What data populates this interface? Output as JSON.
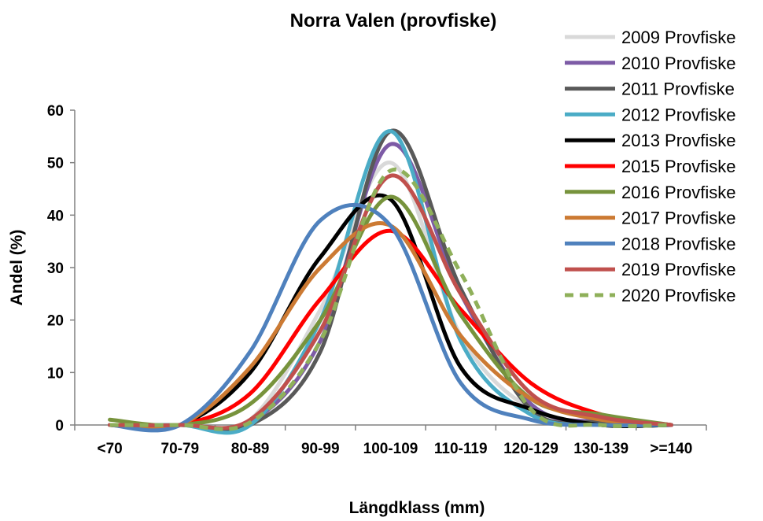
{
  "chart_data": {
    "type": "line",
    "title": "Norra Valen (provfiske)",
    "xlabel": "Längdklass (mm)",
    "ylabel": "Andel (%)",
    "categories": [
      "<70",
      "70-79",
      "80-89",
      "90-99",
      "100-109",
      "110-119",
      "120-129",
      "130-139",
      ">=140"
    ],
    "ylim": [
      0,
      60
    ],
    "yticks": [
      0,
      10,
      20,
      30,
      40,
      50,
      60
    ],
    "grid": false,
    "smooth": true,
    "legend_position": "right",
    "series": [
      {
        "name": "2009 Provfiske",
        "color": "#d9d9d9",
        "dash": false,
        "values": [
          0,
          0,
          1,
          22,
          50,
          17,
          3,
          0,
          0
        ]
      },
      {
        "name": "2010 Provfiske",
        "color": "#7d5ba6",
        "dash": false,
        "values": [
          0,
          0,
          0.5,
          16,
          53.5,
          25,
          4,
          0.5,
          0
        ]
      },
      {
        "name": "2011 Provfiske",
        "color": "#595959",
        "dash": false,
        "values": [
          0,
          0,
          0,
          14,
          56,
          26,
          3,
          0.5,
          0
        ]
      },
      {
        "name": "2012 Provfiske",
        "color": "#4bacc6",
        "dash": false,
        "values": [
          0,
          0,
          0,
          20,
          56,
          16,
          2,
          0,
          0
        ]
      },
      {
        "name": "2013 Provfiske",
        "color": "#000000",
        "dash": false,
        "values": [
          0,
          0,
          10,
          32,
          43,
          11,
          3,
          0,
          0
        ]
      },
      {
        "name": "2015 Provfiske",
        "color": "#ff0000",
        "dash": false,
        "values": [
          0,
          0,
          6,
          24,
          37,
          22,
          8,
          2,
          0
        ]
      },
      {
        "name": "2016 Provfiske",
        "color": "#77933c",
        "dash": false,
        "values": [
          1,
          0,
          4,
          20,
          43.5,
          21,
          5,
          2,
          0
        ]
      },
      {
        "name": "2017 Provfiske",
        "color": "#cc7a33",
        "dash": false,
        "values": [
          0,
          0,
          11,
          30,
          38,
          17,
          5,
          1,
          0
        ]
      },
      {
        "name": "2018 Provfiske",
        "color": "#4f81bd",
        "dash": false,
        "values": [
          0,
          0,
          14,
          39,
          38,
          8,
          1,
          0,
          0
        ]
      },
      {
        "name": "2019 Provfiske",
        "color": "#c0504d",
        "dash": false,
        "values": [
          0,
          0,
          1,
          18,
          47.5,
          25,
          6,
          1.5,
          0
        ]
      },
      {
        "name": "2020 Provfiske",
        "color": "#8fb05a",
        "dash": true,
        "values": [
          0,
          0,
          0.5,
          16,
          48.5,
          29,
          3,
          0,
          0
        ]
      }
    ]
  }
}
